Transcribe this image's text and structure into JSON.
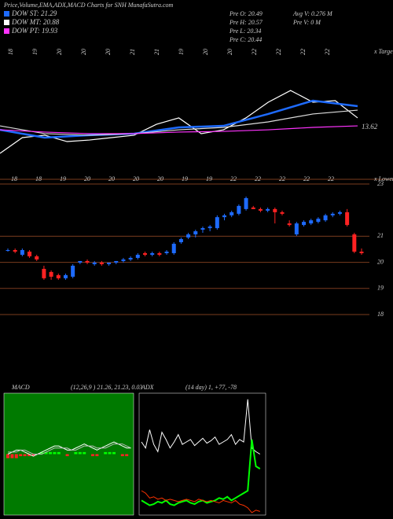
{
  "header": {
    "title": "Price,Volume,EMA,ADX,MACD Charts for SNH MunafaSutra.com",
    "legend": [
      {
        "label": "DOW ST: 21.29",
        "color": "#1e6bff"
      },
      {
        "label": "DOW MT: 20.88",
        "color": "#ffffff"
      },
      {
        "label": "DOW PT: 19.93",
        "color": "#ff33ff"
      }
    ],
    "stats": [
      "Pre  O: 20.49",
      "Pre  H: 20.57",
      "Pre  L: 20.34",
      "Pre  C: 20.44",
      "Avg V: 0.276  M",
      "Pre  V: 0  M"
    ]
  },
  "ema_panel": {
    "date_labels": [
      "18",
      "19",
      "20",
      "20",
      "20",
      "21",
      "21",
      "19",
      "20",
      "20",
      "22",
      "22",
      "22",
      "22"
    ],
    "corner_label": "x Target",
    "last_label": "13.62",
    "ylim": [
      18,
      23
    ],
    "series": [
      {
        "color": "#ffffff",
        "values": [
          18.28,
          19.39,
          19.56,
          19.11,
          19.22,
          19.39,
          19.56,
          20.33,
          20.78,
          19.67,
          19.94,
          20.78,
          21.89,
          22.72,
          21.89,
          22.0,
          20.78
        ]
      },
      {
        "color": "#1e6bff",
        "values": [
          19.94,
          19.39,
          19.56,
          19.67,
          20.11,
          20.22,
          21.06,
          22.0,
          21.61
        ]
      },
      {
        "color": "#dddddd",
        "values": [
          20.22,
          19.67,
          19.56,
          19.67,
          19.94,
          20.11,
          20.5,
          21.06,
          21.33
        ]
      },
      {
        "color": "#ff33ff",
        "values": [
          19.94,
          19.78,
          19.67,
          19.67,
          19.78,
          19.83,
          19.94,
          20.11,
          20.22
        ]
      }
    ]
  },
  "price_panel": {
    "date_labels": [
      "18",
      "18",
      "19",
      "20",
      "20",
      "20",
      "20",
      "19",
      "19",
      "22",
      "22",
      "22",
      "22",
      "22"
    ],
    "corner_label": "x Lower",
    "ylim": [
      18,
      23
    ],
    "yticks": [
      23,
      21,
      20,
      19,
      18
    ],
    "up_color": "#1e6bff",
    "down_color": "#ff2222",
    "candles": [
      [
        20.45,
        20.53,
        20.41,
        20.47
      ],
      [
        20.47,
        20.53,
        20.35,
        20.41
      ],
      [
        20.29,
        20.53,
        20.23,
        20.47
      ],
      [
        20.41,
        20.47,
        20.17,
        20.23
      ],
      [
        20.23,
        20.29,
        20.05,
        20.11
      ],
      [
        19.75,
        19.87,
        19.33,
        19.39
      ],
      [
        19.63,
        19.69,
        19.33,
        19.45
      ],
      [
        19.51,
        19.57,
        19.33,
        19.39
      ],
      [
        19.39,
        19.57,
        19.33,
        19.51
      ],
      [
        19.45,
        19.93,
        19.39,
        19.87
      ],
      [
        19.99,
        20.05,
        19.93,
        20.05
      ],
      [
        20.05,
        20.11,
        19.93,
        19.99
      ],
      [
        19.93,
        20.05,
        19.87,
        19.99
      ],
      [
        19.99,
        20.05,
        19.87,
        19.93
      ],
      [
        19.93,
        19.99,
        19.87,
        19.99
      ],
      [
        19.99,
        20.05,
        19.93,
        20.05
      ],
      [
        20.05,
        20.17,
        19.99,
        20.11
      ],
      [
        20.11,
        20.23,
        20.05,
        20.17
      ],
      [
        20.17,
        20.35,
        20.11,
        20.29
      ],
      [
        20.35,
        20.41,
        20.23,
        20.29
      ],
      [
        20.29,
        20.41,
        20.23,
        20.35
      ],
      [
        20.35,
        20.41,
        20.23,
        20.29
      ],
      [
        20.35,
        20.47,
        20.29,
        20.41
      ],
      [
        20.35,
        20.77,
        20.29,
        20.71
      ],
      [
        20.77,
        20.95,
        20.71,
        20.89
      ],
      [
        20.95,
        21.13,
        20.89,
        21.07
      ],
      [
        21.07,
        21.25,
        20.95,
        21.19
      ],
      [
        21.25,
        21.37,
        21.13,
        21.31
      ],
      [
        21.31,
        21.43,
        21.19,
        21.37
      ],
      [
        21.31,
        21.8,
        21.25,
        21.73
      ],
      [
        21.73,
        21.86,
        21.61,
        21.8
      ],
      [
        21.8,
        21.98,
        21.73,
        21.92
      ],
      [
        21.86,
        22.22,
        21.8,
        22.16
      ],
      [
        22.04,
        22.52,
        21.98,
        22.46
      ],
      [
        22.1,
        22.16,
        22.04,
        22.04
      ],
      [
        22.04,
        22.1,
        21.92,
        21.98
      ],
      [
        21.98,
        22.1,
        21.92,
        22.04
      ],
      [
        22.04,
        22.1,
        21.49,
        21.92
      ],
      [
        21.92,
        21.98,
        21.8,
        21.86
      ],
      [
        21.49,
        21.61,
        21.37,
        21.43
      ],
      [
        21.07,
        21.55,
        21.01,
        21.49
      ],
      [
        21.43,
        21.61,
        21.37,
        21.55
      ],
      [
        21.49,
        21.67,
        21.43,
        21.61
      ],
      [
        21.55,
        21.73,
        21.49,
        21.67
      ],
      [
        21.61,
        21.86,
        21.55,
        21.8
      ],
      [
        21.8,
        21.92,
        21.73,
        21.86
      ],
      [
        21.86,
        21.98,
        21.8,
        21.92
      ],
      [
        21.92,
        22.04,
        21.37,
        21.43
      ],
      [
        21.07,
        21.13,
        20.35,
        20.41
      ],
      [
        20.41,
        20.53,
        20.29,
        20.35
      ]
    ]
  },
  "macd_panel": {
    "label": "MACD",
    "params": "(12,26,9 ) 21.26, 21.23, 0.03",
    "ylim": [
      -0.3,
      0.3
    ],
    "macd": [
      0,
      0.01,
      0.02,
      0.02,
      0.01,
      0,
      -0.01,
      0,
      0.01,
      0.02,
      0.03,
      0.04,
      0.04,
      0.03,
      0.02,
      0.02,
      0.03,
      0.04,
      0.05,
      0.04,
      0.03,
      0.02,
      0.03,
      0.04,
      0.05,
      0.06,
      0.05,
      0.04,
      0.03,
      0.03
    ],
    "signal": [
      0.01,
      0.01,
      0.01,
      0.02,
      0.02,
      0.01,
      0,
      0,
      0,
      0.01,
      0.02,
      0.03,
      0.03,
      0.03,
      0.03,
      0.02,
      0.02,
      0.03,
      0.04,
      0.04,
      0.04,
      0.03,
      0.03,
      0.03,
      0.04,
      0.05,
      0.05,
      0.05,
      0.04,
      0.03
    ],
    "histogram": [
      -0.02,
      -0.02,
      -0.02,
      -0.01,
      -0.01,
      -0.01,
      -0.01,
      0,
      0.01,
      0.01,
      0.01,
      0.01,
      0.01,
      0,
      -0.01,
      0,
      0.01,
      0.01,
      0.01,
      0,
      -0.01,
      -0.01,
      0,
      0.01,
      0.01,
      0.01,
      0,
      -0.01,
      -0.01,
      0
    ]
  },
  "adx_panel": {
    "label": "ADX",
    "params": "(14  day) 1, +77, -78",
    "ylim": [
      0,
      100
    ],
    "adx": [
      60,
      55,
      70,
      58,
      52,
      68,
      62,
      55,
      60,
      66,
      58,
      60,
      62,
      57,
      60,
      63,
      59,
      61,
      64,
      58,
      60,
      62,
      66,
      58,
      62,
      60,
      95,
      55,
      52,
      50
    ],
    "plus_di": [
      12,
      10,
      8,
      9,
      11,
      10,
      12,
      9,
      8,
      10,
      11,
      12,
      10,
      9,
      11,
      12,
      10,
      11,
      12,
      14,
      13,
      15,
      12,
      14,
      16,
      18,
      20,
      62,
      40,
      38
    ],
    "minus_di": [
      20,
      18,
      14,
      15,
      13,
      14,
      12,
      13,
      12,
      11,
      12,
      13,
      12,
      11,
      13,
      12,
      11,
      12,
      11,
      10,
      12,
      11,
      10,
      12,
      9,
      8,
      6,
      2,
      4,
      3
    ]
  }
}
